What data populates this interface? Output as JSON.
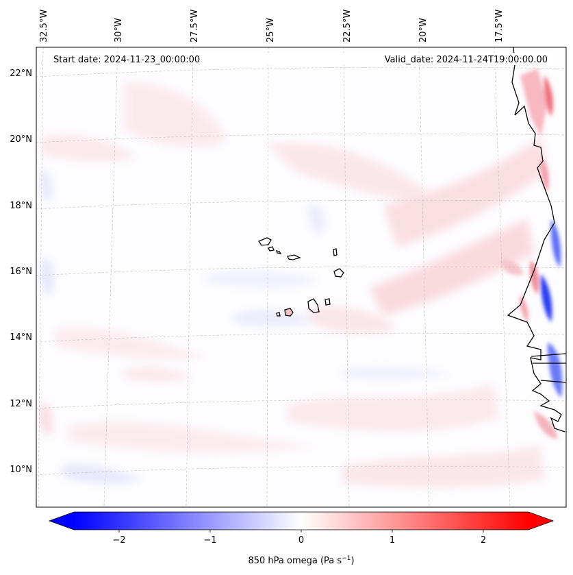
{
  "map": {
    "header": {
      "start_date": "Start date: 2024-11-23_00:00:00",
      "valid_date": "Valid_date: 2024-11-24T19:00:00.00"
    },
    "lon_labels": [
      "32.5°W",
      "30°W",
      "27.5°W",
      "25°W",
      "22.5°W",
      "20°W",
      "17.5°W"
    ],
    "lat_labels": [
      "22°N",
      "20°N",
      "18°N",
      "16°N",
      "14°N",
      "12°N",
      "10°N"
    ],
    "variable": "850 hPa omega",
    "units": "Pa s",
    "units_exponent": "−1",
    "colorbar": {
      "colormap": "bwr",
      "ticks": [
        "−2",
        "−1",
        "0",
        "1",
        "2"
      ],
      "range": [
        -2.5,
        2.5
      ],
      "extend": "both"
    },
    "colors": {
      "coastline": "#000000",
      "gridline": "#b0b0b0",
      "negative": "#0000ff",
      "positive": "#ff0000",
      "neutral": "#ffffff"
    }
  }
}
